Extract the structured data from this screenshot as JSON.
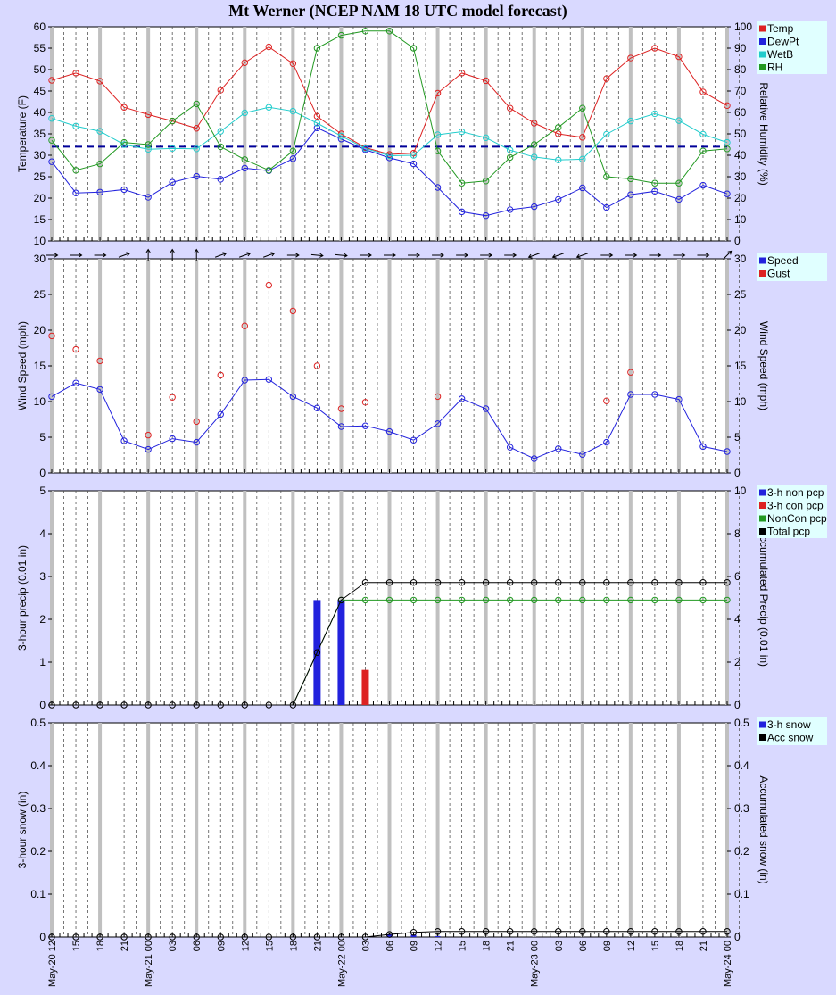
{
  "title": "Mt Werner (NCEP NAM 18 UTC model forecast)",
  "x_labels": [
    "May-20 12",
    "15",
    "18",
    "21",
    "May-21 00",
    "03",
    "06",
    "09",
    "12",
    "15",
    "18",
    "21",
    "May-22 00",
    "03",
    "06",
    "09",
    "12",
    "15",
    "18",
    "21",
    "May-23 00",
    "03",
    "06",
    "09",
    "12",
    "15",
    "18",
    "21",
    "May-24 00"
  ],
  "colors": {
    "background": "#d9d9ff",
    "plot": "#ffffff",
    "legend": "#e0ffff",
    "temp": "#dd2222",
    "dewpt": "#2222dd",
    "wetb": "#22cccc",
    "rh": "#229922",
    "speed": "#2222dd",
    "gust": "#dd2222",
    "freezing": "#000099"
  },
  "chart_data": [
    {
      "type": "line",
      "ylabel": "Temperature (F)",
      "ylabel_right": "Relative Humidity (%)",
      "ylim": [
        10,
        60
      ],
      "ylim_right": [
        0,
        100
      ],
      "yticks": [
        "10",
        "15",
        "20",
        "25",
        "30",
        "35",
        "40",
        "45",
        "50",
        "55",
        "60"
      ],
      "yticks_right": [
        "0",
        "10",
        "20",
        "30",
        "40",
        "50",
        "60",
        "70",
        "80",
        "90",
        "100"
      ],
      "reference_line": 32,
      "legend": [
        "Temp",
        "DewPt",
        "WetB",
        "RH"
      ],
      "series": [
        {
          "name": "Temp",
          "axis": "left",
          "values": [
            47.5,
            49.2,
            47.3,
            41.2,
            39.5,
            38,
            36.3,
            45.2,
            51.6,
            55.3,
            51.4,
            39.1,
            35,
            31.8,
            30.2,
            30.5,
            44.5,
            49.2,
            47.4,
            41,
            37.5,
            35,
            34.2,
            47.9,
            52.7,
            55,
            53,
            44.8,
            41.6
          ]
        },
        {
          "name": "DewPt",
          "axis": "left",
          "values": [
            28.5,
            21.2,
            21.4,
            22,
            20.2,
            23.7,
            25.1,
            24.4,
            27,
            26.4,
            29.2,
            36.4,
            33.8,
            31.3,
            29.4,
            28,
            22.5,
            16.8,
            15.9,
            17.3,
            18,
            19.7,
            22.4,
            17.8,
            20.8,
            21.6,
            19.7,
            23,
            21
          ]
        },
        {
          "name": "WetB",
          "axis": "left",
          "values": [
            38.6,
            36.8,
            35.6,
            32.5,
            31.4,
            31.6,
            31.5,
            35.6,
            39.9,
            41.2,
            40.3,
            37.5,
            34.5,
            31.6,
            29.9,
            30,
            34.8,
            35.5,
            34.1,
            31.2,
            29.6,
            28.9,
            29.1,
            34.9,
            38,
            39.7,
            38.1,
            34.9,
            33
          ]
        },
        {
          "name": "RH",
          "axis": "right",
          "values": [
            47,
            33,
            36,
            46,
            45,
            56,
            64,
            44,
            38,
            33,
            42,
            90,
            96,
            98,
            98,
            90,
            42,
            27,
            28,
            39,
            45,
            53,
            62,
            30,
            29,
            27,
            27,
            42,
            43
          ]
        }
      ]
    },
    {
      "type": "line",
      "ylabel": "Wind Speed (mph)",
      "ylabel_right": "Wind Speed (mph)",
      "ylim": [
        0,
        30
      ],
      "yticks": [
        "0",
        "5",
        "10",
        "15",
        "20",
        "25",
        "30"
      ],
      "legend": [
        "Speed",
        "Gust"
      ],
      "wind_direction_deg": [
        90,
        90,
        90,
        70,
        0,
        0,
        0,
        70,
        70,
        70,
        90,
        95,
        95,
        90,
        90,
        90,
        90,
        90,
        90,
        90,
        250,
        250,
        250,
        90,
        90,
        90,
        90,
        90,
        45
      ],
      "series": [
        {
          "name": "Speed",
          "values": [
            10.7,
            12.6,
            11.7,
            4.5,
            3.3,
            4.8,
            4.3,
            8.2,
            13,
            13.1,
            10.7,
            9.1,
            6.5,
            6.6,
            5.8,
            4.6,
            6.9,
            10.4,
            9,
            3.6,
            2,
            3.4,
            2.6,
            4.3,
            11,
            11,
            10.3,
            3.7,
            3
          ]
        },
        {
          "name": "Gust",
          "values": [
            19.2,
            17.3,
            15.7,
            null,
            5.3,
            10.6,
            7.2,
            13.7,
            20.6,
            26.3,
            22.7,
            15,
            9,
            9.9,
            null,
            null,
            10.7,
            null,
            null,
            null,
            null,
            null,
            null,
            10.1,
            14.1,
            null,
            null,
            null,
            null
          ]
        }
      ]
    },
    {
      "type": "bar",
      "ylabel": "3-hour precip (0.01 in)",
      "ylabel_right": "Accumulated Precip (0.01 in)",
      "ylim": [
        0,
        5
      ],
      "ylim_right": [
        0,
        10
      ],
      "yticks": [
        "0",
        "1",
        "2",
        "3",
        "4",
        "5"
      ],
      "yticks_right": [
        "0",
        "2",
        "4",
        "6",
        "8",
        "10"
      ],
      "legend": [
        "3-h non pcp",
        "3-h con pcp",
        "NonCon pcp",
        "Total pcp"
      ],
      "series": [
        {
          "name": "3-h non pcp",
          "values": [
            0,
            0,
            0,
            0,
            0,
            0,
            0,
            0,
            0,
            0,
            0,
            2.45,
            2.45,
            0,
            0,
            0,
            0,
            0,
            0,
            0,
            0,
            0,
            0,
            0,
            0,
            0,
            0,
            0,
            0
          ]
        },
        {
          "name": "3-h con pcp",
          "values": [
            0,
            0,
            0,
            0,
            0,
            0,
            0,
            0,
            0,
            0,
            0,
            0,
            0,
            0.82,
            0,
            0,
            0,
            0,
            0,
            0,
            0,
            0,
            0,
            0,
            0,
            0,
            0,
            0,
            0
          ]
        },
        {
          "name": "NonCon pcp",
          "axis": "right",
          "values": [
            0,
            0,
            0,
            0,
            0,
            0,
            0,
            0,
            0,
            0,
            0,
            2.45,
            4.9,
            4.9,
            4.9,
            4.9,
            4.9,
            4.9,
            4.9,
            4.9,
            4.9,
            4.9,
            4.9,
            4.9,
            4.9,
            4.9,
            4.9,
            4.9,
            4.9
          ]
        },
        {
          "name": "Total pcp",
          "axis": "right",
          "values": [
            0,
            0,
            0,
            0,
            0,
            0,
            0,
            0,
            0,
            0,
            0,
            2.45,
            4.9,
            5.72,
            5.72,
            5.72,
            5.72,
            5.72,
            5.72,
            5.72,
            5.72,
            5.72,
            5.72,
            5.72,
            5.72,
            5.72,
            5.72,
            5.72,
            5.72
          ]
        }
      ]
    },
    {
      "type": "line",
      "ylabel": "3-hour snow (in)",
      "ylabel_right": "Accumulated snow (in)",
      "ylim": [
        0,
        0.5
      ],
      "yticks": [
        "0",
        "0.1",
        "0.2",
        "0.3",
        "0.4",
        "0.5"
      ],
      "legend": [
        "3-h snow",
        "Acc snow"
      ],
      "series": [
        {
          "name": "3-h snow",
          "values": [
            0,
            0,
            0,
            0,
            0,
            0,
            0,
            0,
            0,
            0,
            0,
            0,
            0,
            0,
            0.006,
            0.005,
            0.002,
            0,
            0,
            0,
            0,
            0,
            0,
            0,
            0,
            0,
            0,
            0,
            0
          ]
        },
        {
          "name": "Acc snow",
          "values": [
            0,
            0,
            0,
            0,
            0,
            0,
            0,
            0,
            0,
            0,
            0,
            0,
            0,
            0,
            0.006,
            0.011,
            0.013,
            0.013,
            0.013,
            0.013,
            0.013,
            0.013,
            0.013,
            0.013,
            0.013,
            0.013,
            0.013,
            0.013,
            0.013
          ]
        }
      ]
    }
  ]
}
